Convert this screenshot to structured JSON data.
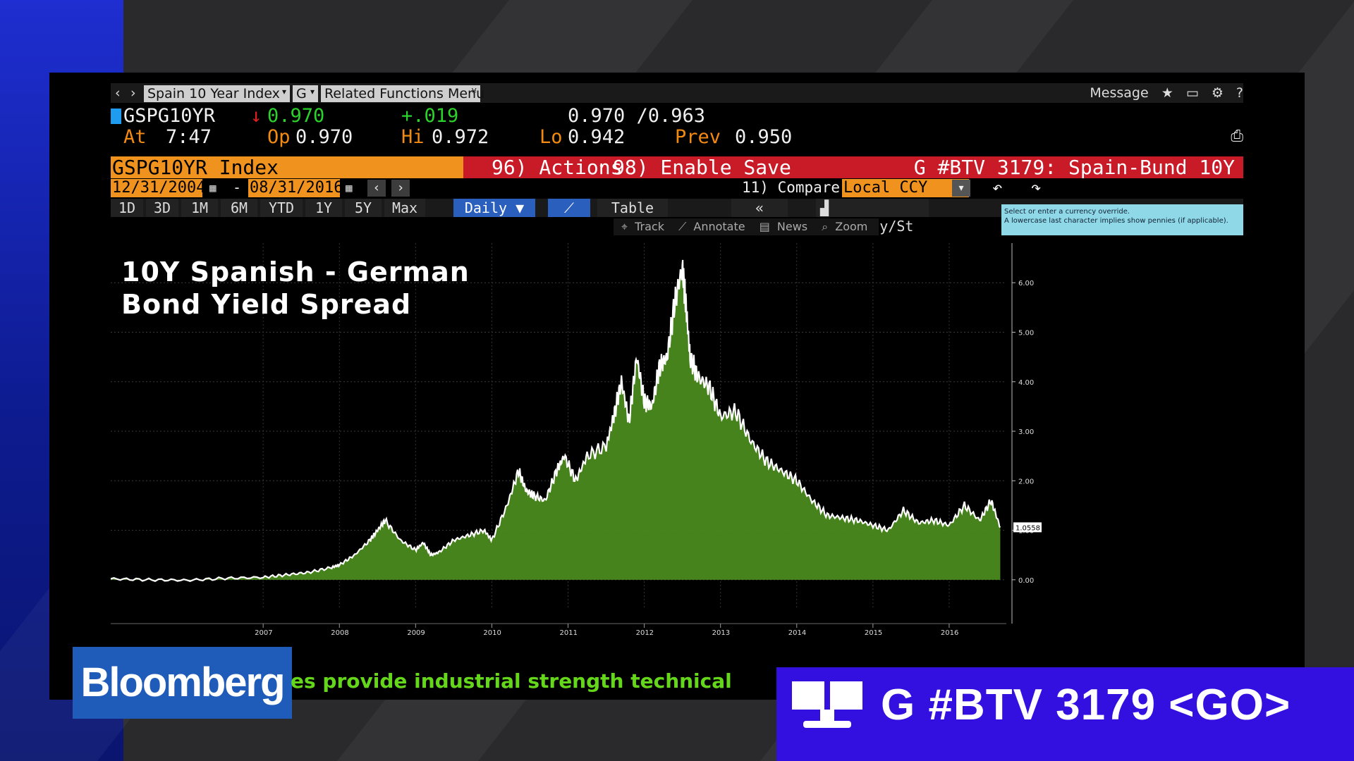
{
  "nav": {
    "back_icon": "chevron-left-icon",
    "fwd_icon": "chevron-right-icon",
    "security_name": "Spain 10 Year Index",
    "market_sector": "G",
    "related_menu": "Related Functions Menu",
    "message_label": "Message",
    "icons": [
      "star-icon",
      "monitor-icon",
      "gear-icon",
      "help-icon"
    ]
  },
  "quote": {
    "ticker": "GSPG10YR",
    "last": "0.970",
    "change": "+.019",
    "bid_ask": "0.970 /0.963",
    "at_label": "At",
    "time": "7:47",
    "open_label": "Op",
    "open": "0.970",
    "hi_label": "Hi",
    "hi": "0.972",
    "lo_label": "Lo",
    "lo": "0.942",
    "prev_label": "Prev",
    "prev": "0.950"
  },
  "command_bar": {
    "security": "GSPG10YR Index",
    "actions": "96) Actions",
    "enable_save": "98) Enable Save",
    "function": "G #BTV 3179: Spain-Bund 10Y"
  },
  "date_row": {
    "start_date": "12/31/2004",
    "separator": "-",
    "end_date": "08/31/2016",
    "compare": "11) Compare",
    "currency": "Local CCY"
  },
  "ranges": {
    "buttons": [
      "1D",
      "3D",
      "1M",
      "6M",
      "YTD",
      "1Y",
      "5Y",
      "Max"
    ],
    "frequency": "Daily",
    "table": "Table",
    "collapse": "«",
    "security_study": "Security/St"
  },
  "chart_toolbar": [
    "Track",
    "Annotate",
    "News",
    "Zoom"
  ],
  "tooltip": {
    "line1": "Select or enter a currency override.",
    "line2": "A lowercase last character implies show pennies (if applicable)."
  },
  "chart_overlay": {
    "title_line1": "10Y Spanish - German",
    "title_line2": "Bond Yield Spread"
  },
  "chart_data": {
    "type": "area",
    "title": "10Y Spanish - German Bond Yield Spread",
    "x_tick_labels": [
      "2007",
      "2008",
      "2009",
      "2010",
      "2011",
      "2012",
      "2013",
      "2014",
      "2015",
      "2016"
    ],
    "y_ticks": [
      0,
      1,
      2,
      3,
      4,
      5,
      6
    ],
    "y_tick_labels": [
      "0.00",
      "1.00",
      "2.00",
      "3.00",
      "4.00",
      "5.00",
      "6.00"
    ],
    "ylim": [
      -0.6,
      6.8
    ],
    "xlim": [
      2005.0,
      2016.75
    ],
    "last_value_label": "1.0558",
    "grid": true,
    "series": [
      {
        "color": "#4b8a1e",
        "x": [
          2005.0,
          2005.5,
          2006.0,
          2006.5,
          2007.0,
          2007.3,
          2007.6,
          2007.9,
          2008.0,
          2008.2,
          2008.4,
          2008.5,
          2008.6,
          2008.8,
          2009.0,
          2009.1,
          2009.2,
          2009.3,
          2009.5,
          2009.7,
          2009.9,
          2010.0,
          2010.2,
          2010.35,
          2010.45,
          2010.55,
          2010.7,
          2010.85,
          2010.95,
          2011.1,
          2011.25,
          2011.5,
          2011.6,
          2011.7,
          2011.8,
          2011.9,
          2012.0,
          2012.1,
          2012.2,
          2012.3,
          2012.4,
          2012.5,
          2012.55,
          2012.6,
          2012.7,
          2012.85,
          2013.0,
          2013.2,
          2013.4,
          2013.6,
          2013.8,
          2014.0,
          2014.2,
          2014.4,
          2014.6,
          2014.8,
          2015.0,
          2015.2,
          2015.4,
          2015.6,
          2015.8,
          2016.0,
          2016.2,
          2016.4,
          2016.55,
          2016.67
        ],
        "y": [
          0.02,
          0.0,
          -0.01,
          0.03,
          0.05,
          0.1,
          0.15,
          0.25,
          0.3,
          0.5,
          0.8,
          1.0,
          1.2,
          0.8,
          0.6,
          0.75,
          0.5,
          0.55,
          0.8,
          0.9,
          1.0,
          0.8,
          1.5,
          2.2,
          1.8,
          1.7,
          1.6,
          2.2,
          2.5,
          2.0,
          2.5,
          2.7,
          3.3,
          4.0,
          3.2,
          4.5,
          3.6,
          3.5,
          4.3,
          4.5,
          5.6,
          6.3,
          5.5,
          4.5,
          4.1,
          3.9,
          3.3,
          3.4,
          2.8,
          2.4,
          2.2,
          2.0,
          1.6,
          1.3,
          1.25,
          1.2,
          1.1,
          1.0,
          1.4,
          1.15,
          1.2,
          1.1,
          1.5,
          1.2,
          1.6,
          1.06
        ]
      }
    ]
  },
  "footer": {
    "brand": "Bloomberg",
    "scroll_text": "es provide industrial strength technical",
    "go_command": "G #BTV 3179 <GO>"
  }
}
